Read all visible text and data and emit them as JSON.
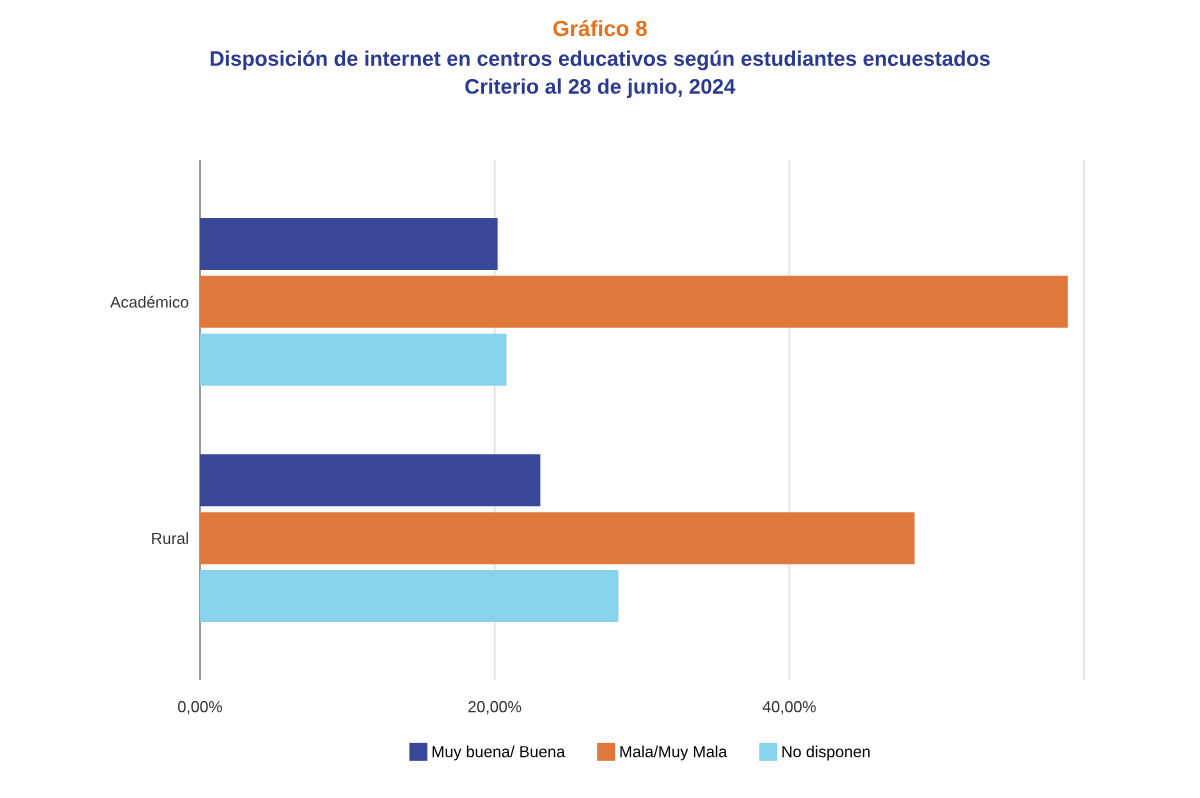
{
  "chart_data": {
    "type": "bar",
    "orientation": "horizontal",
    "title": "Gráfico 8",
    "subtitle": "Disposición de internet en centros educativos según estudiantes encuestados\nCriterio al 28 de junio, 2024",
    "categories": [
      "Académico",
      "Rural"
    ],
    "series": [
      {
        "name": "Muy buena/ Buena",
        "color": "#394797",
        "values": [
          20.2,
          23.1
        ]
      },
      {
        "name": "Mala/Muy Mala",
        "color": "#e0783c",
        "values": [
          58.9,
          48.5
        ]
      },
      {
        "name": "No disponen",
        "color": "#87d3eb",
        "values": [
          20.8,
          28.4
        ]
      }
    ],
    "xlim": [
      0,
      60
    ],
    "xticks": [
      {
        "value": 0,
        "label": "0,00%"
      },
      {
        "value": 20,
        "label": "20,00%"
      },
      {
        "value": 40,
        "label": "40,00%"
      },
      {
        "value": 60,
        "label": null
      }
    ],
    "grid": "x",
    "legend": "bottom"
  }
}
